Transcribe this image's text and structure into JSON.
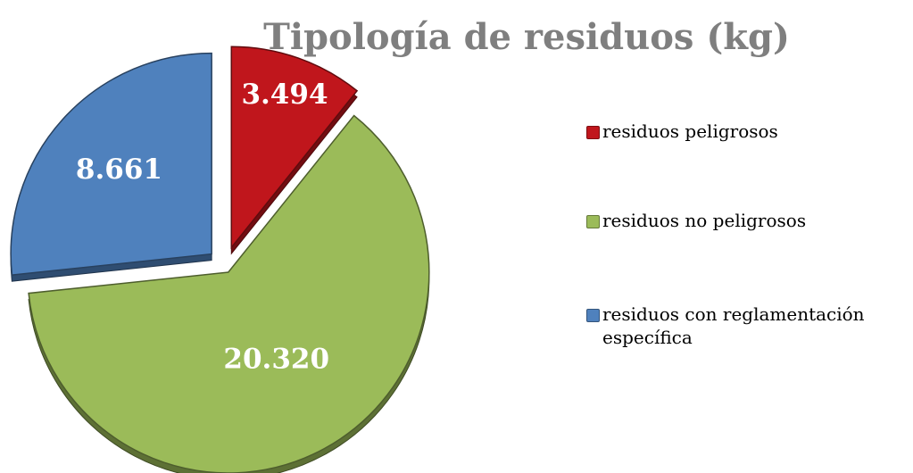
{
  "chart_data": {
    "type": "pie",
    "title": "Tipología de residuos (kg)",
    "categories": [
      "residuos peligrosos",
      "residuos no peligrosos",
      "residuos con reglamentación específica"
    ],
    "values": [
      3494,
      20320,
      8661
    ],
    "value_labels": [
      "3.494",
      "20.320",
      "8.661"
    ],
    "colors": [
      "#c0161c",
      "#9bbb59",
      "#4f81bd"
    ],
    "legend": "right"
  }
}
